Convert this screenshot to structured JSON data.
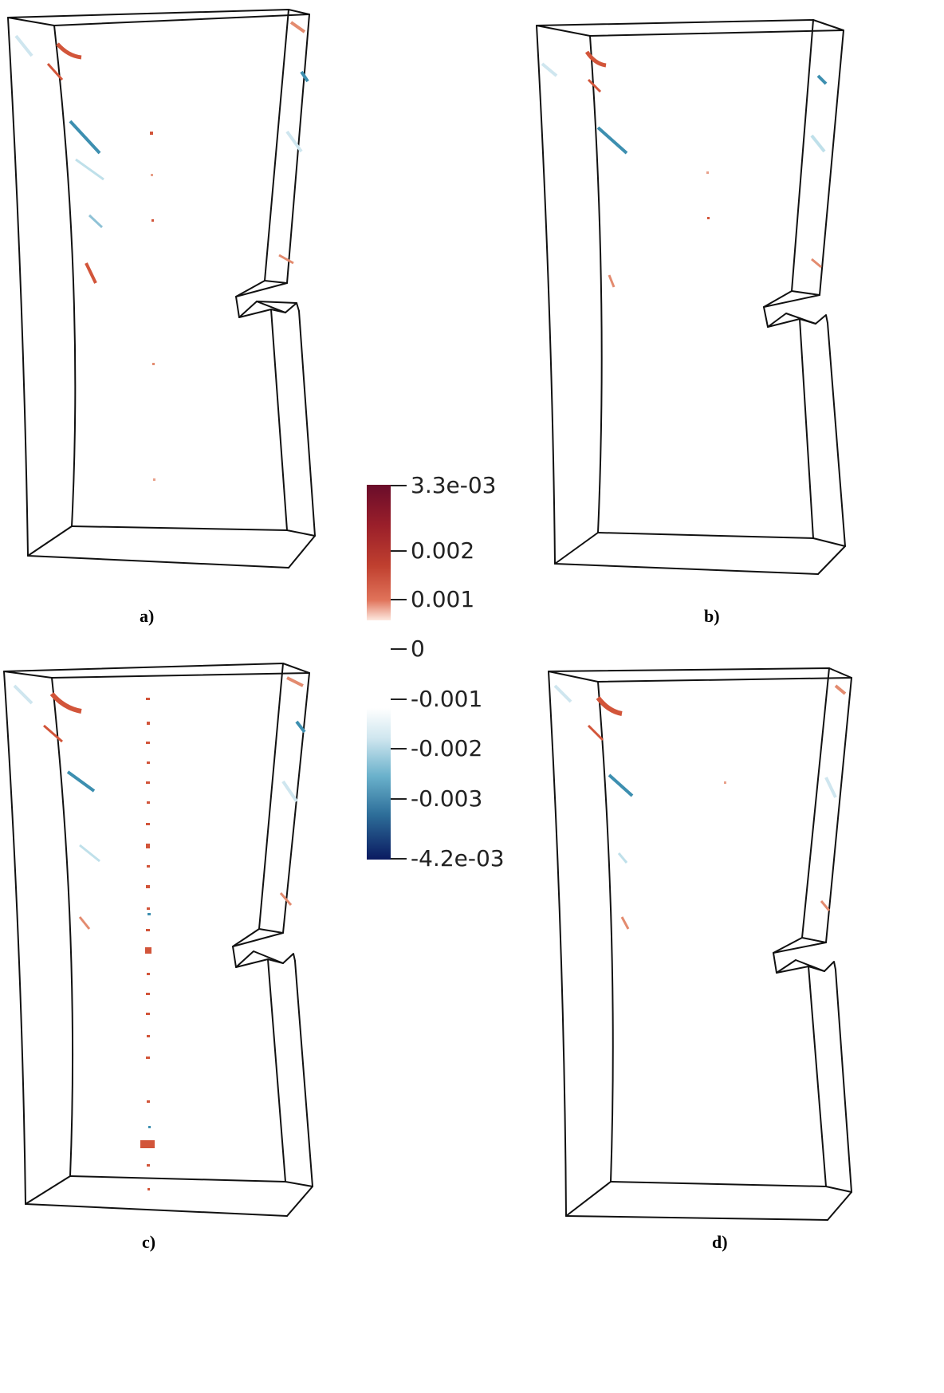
{
  "panels": [
    {
      "id": "a",
      "caption": "a)"
    },
    {
      "id": "b",
      "caption": "b)"
    },
    {
      "id": "c",
      "caption": "c)"
    },
    {
      "id": "d",
      "caption": "d)"
    }
  ],
  "colorbar": {
    "max_label": "3.3e-03",
    "min_label": "-4.2e-03",
    "ticks": [
      "0.002",
      "0.001",
      "0",
      "-0.001",
      "-0.002",
      "-0.003"
    ],
    "colors": {
      "positive_high": "#6a0c2a",
      "positive_mid": "#c0402f",
      "positive_low": "#f6c6b4",
      "zero": "#ffffff",
      "negative_low": "#e7f3f6",
      "negative_mid": "#3d8fb0",
      "negative_high": "#0a1a60"
    }
  }
}
